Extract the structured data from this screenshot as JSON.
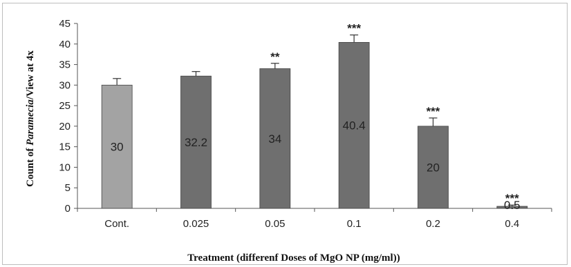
{
  "chart_data": {
    "type": "bar",
    "categories": [
      "Cont.",
      "0.025",
      "0.05",
      "0.1",
      "0.2",
      "0.4"
    ],
    "values": [
      30,
      32.2,
      34,
      40.4,
      20,
      0.5
    ],
    "errors": [
      1.6,
      1.1,
      1.3,
      1.8,
      2.0,
      0.3
    ],
    "data_labels": [
      "30",
      "32.2",
      "34",
      "40.4",
      "20",
      "0.5"
    ],
    "significance": [
      "",
      "",
      "**",
      "***",
      "***",
      "***"
    ],
    "ylim": [
      0,
      45
    ],
    "yticks": [
      0,
      5,
      10,
      15,
      20,
      25,
      30,
      35,
      40,
      45
    ],
    "ylabel_parts": [
      "Count of ",
      "Paramecia",
      "/View at 4x"
    ],
    "xlabel": "Treatment (differenf Doses of MgO NP (mg/ml))",
    "colors": {
      "control": "#a3a3a3",
      "treatment": "#6f6f6f",
      "edge": "#444444"
    },
    "grid": false,
    "legend": "none"
  }
}
